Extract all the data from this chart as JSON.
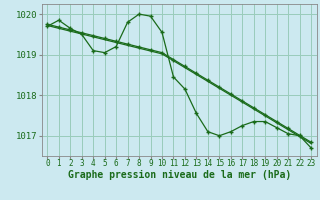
{
  "hours": [
    0,
    1,
    2,
    3,
    4,
    5,
    6,
    7,
    8,
    9,
    10,
    11,
    12,
    13,
    14,
    15,
    16,
    17,
    18,
    19,
    20,
    21,
    22,
    23
  ],
  "line_wavy": [
    1019.7,
    1019.85,
    1019.65,
    1019.5,
    1019.1,
    1019.05,
    1019.2,
    1019.8,
    1020.0,
    1019.95,
    1019.55,
    1018.45,
    1018.15,
    1017.55,
    1017.1,
    1017.0,
    1017.1,
    1017.25,
    1017.35,
    1017.35,
    1017.2,
    1017.05,
    1017.0,
    1016.7
  ],
  "line_straight1": [
    1019.75,
    1019.68,
    1019.61,
    1019.54,
    1019.47,
    1019.4,
    1019.33,
    1019.26,
    1019.19,
    1019.12,
    1019.05,
    1018.88,
    1018.71,
    1018.54,
    1018.37,
    1018.2,
    1018.03,
    1017.86,
    1017.69,
    1017.52,
    1017.35,
    1017.18,
    1017.01,
    1016.84
  ],
  "line_straight2": [
    1019.72,
    1019.65,
    1019.58,
    1019.51,
    1019.44,
    1019.37,
    1019.3,
    1019.23,
    1019.16,
    1019.09,
    1019.02,
    1018.85,
    1018.68,
    1018.51,
    1018.34,
    1018.17,
    1018.0,
    1017.83,
    1017.66,
    1017.49,
    1017.32,
    1017.15,
    1016.98,
    1016.81
  ],
  "bg_color": "#cce9f0",
  "grid_color": "#99ccbb",
  "line_color": "#1a6b1a",
  "marker": "+",
  "xlabel": "Graphe pression niveau de la mer (hPa)",
  "ylim": [
    1016.5,
    1020.25
  ],
  "xlim_min": -0.5,
  "xlim_max": 23.5,
  "yticks": [
    1017,
    1018,
    1019,
    1020
  ],
  "xticks": [
    0,
    1,
    2,
    3,
    4,
    5,
    6,
    7,
    8,
    9,
    10,
    11,
    12,
    13,
    14,
    15,
    16,
    17,
    18,
    19,
    20,
    21,
    22,
    23
  ],
  "tick_fontsize": 5.5,
  "ytick_fontsize": 6.5,
  "xlabel_fontsize": 7.0,
  "linewidth": 0.9,
  "markersize": 3.5,
  "spine_color": "#888888"
}
